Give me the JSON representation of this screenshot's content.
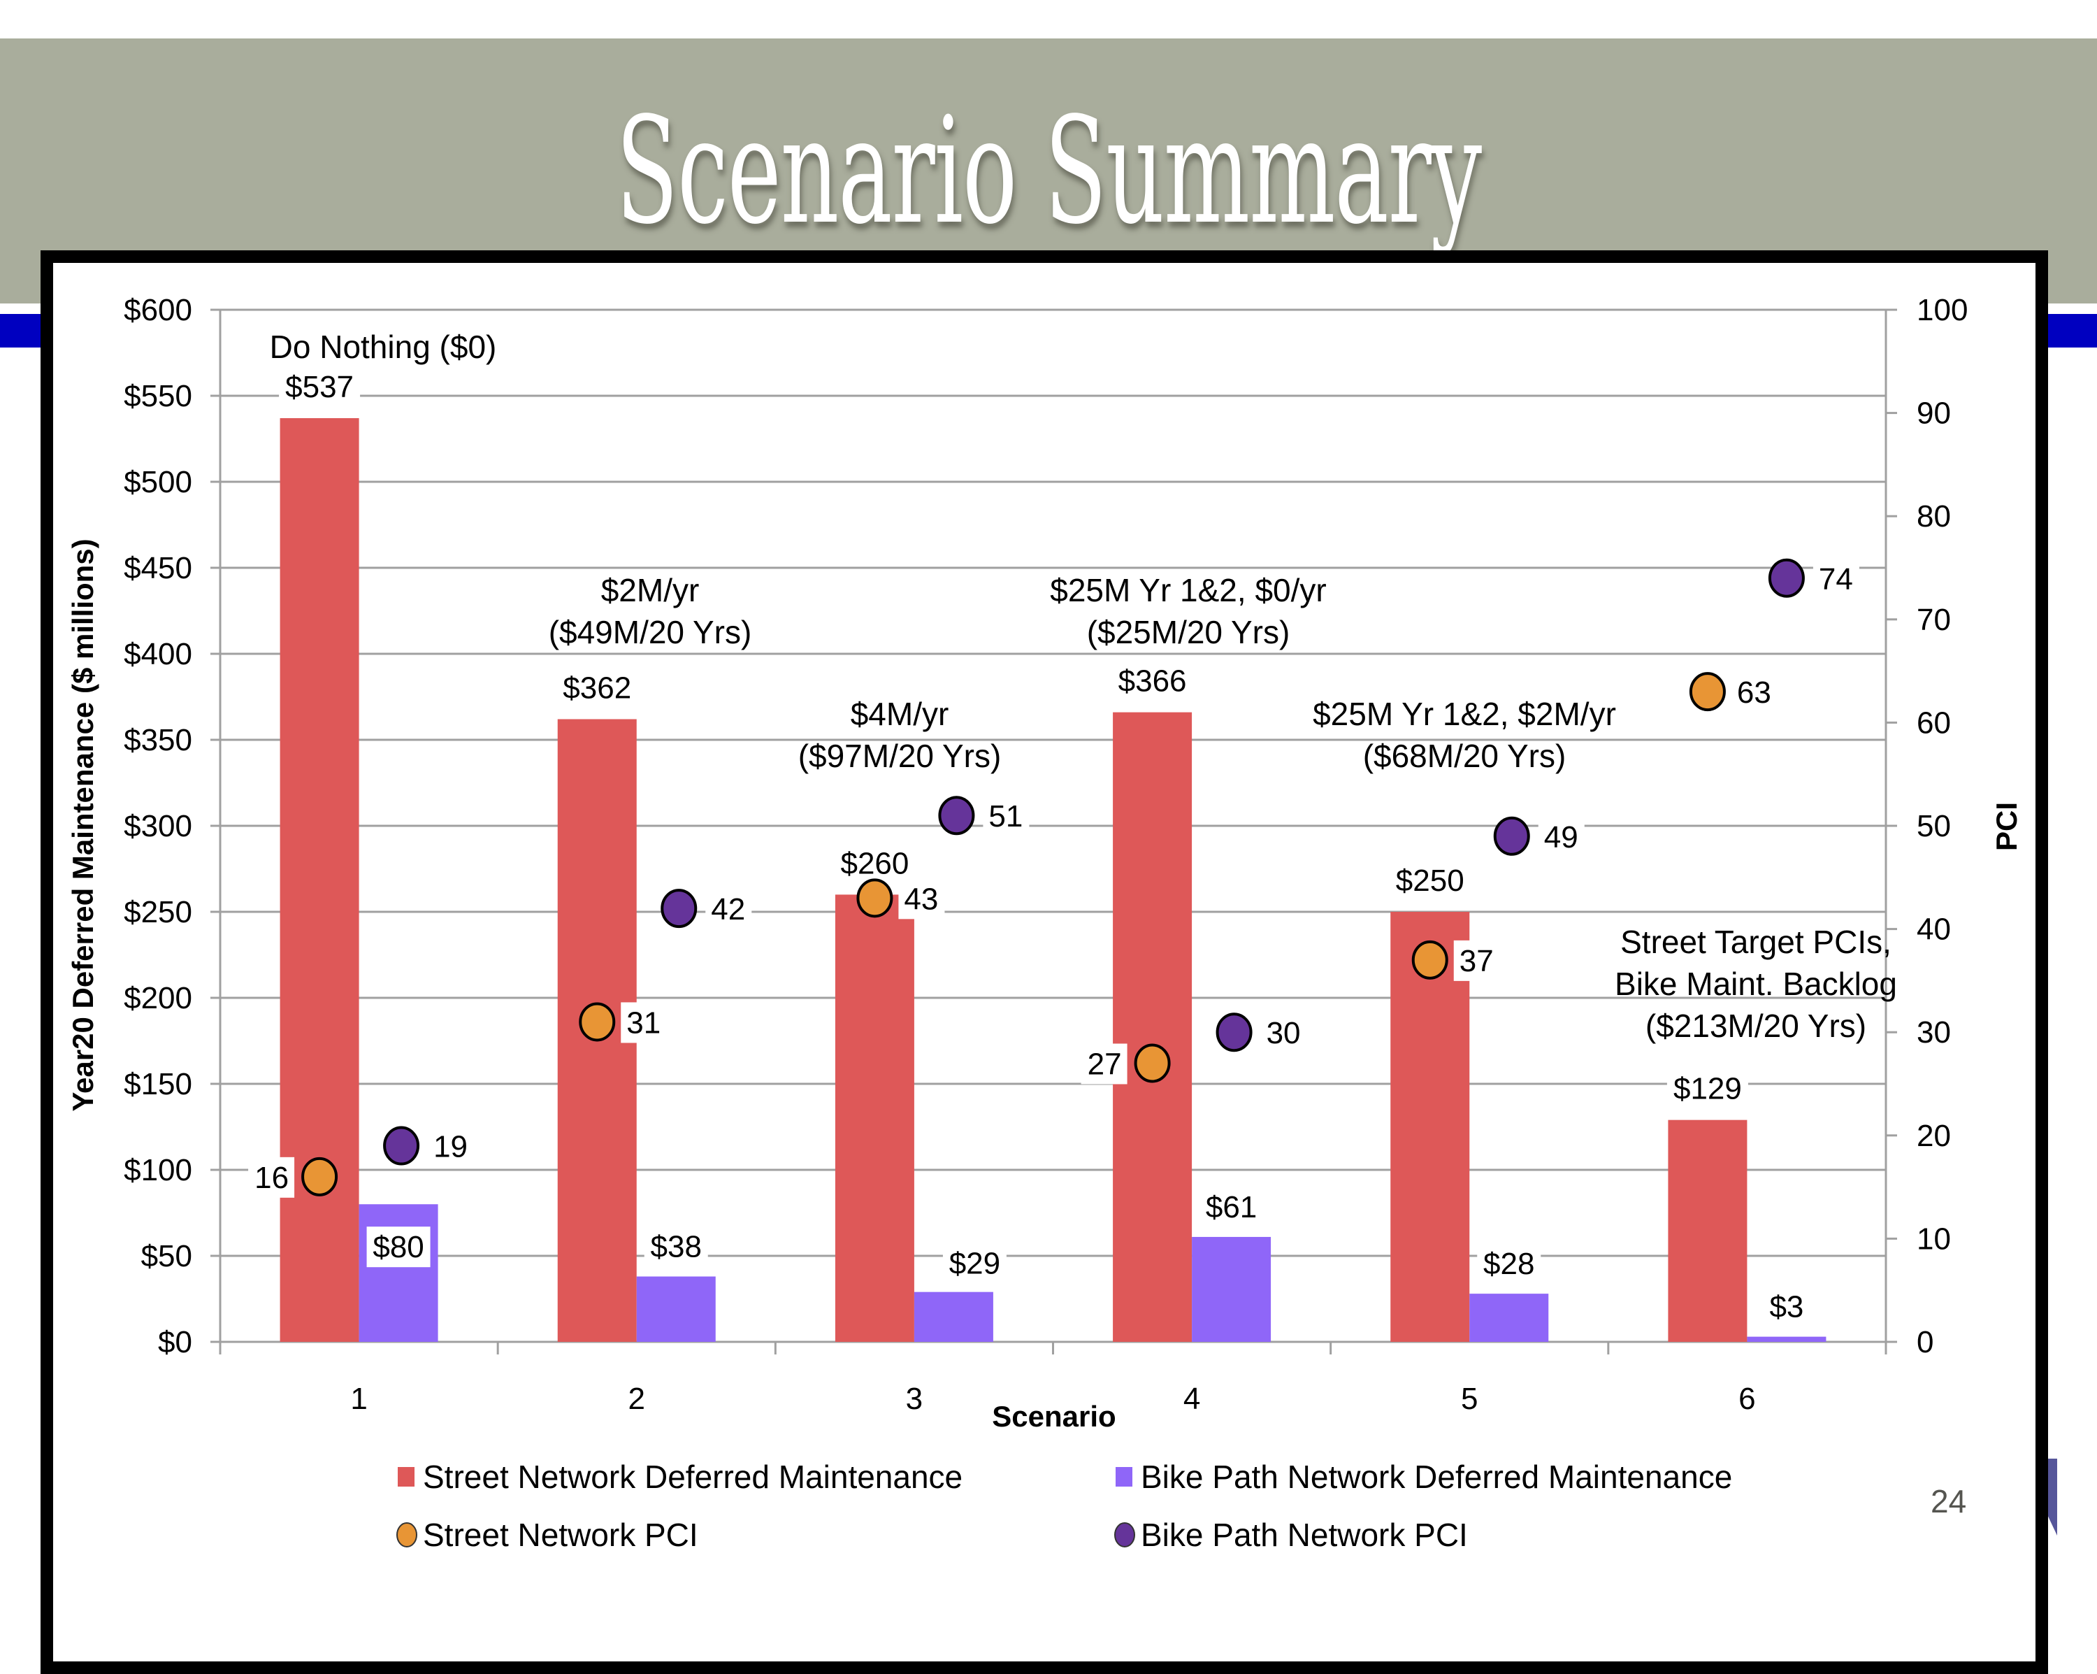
{
  "slide": {
    "title": "Scenario Summary",
    "page_number": "24"
  },
  "colors": {
    "header_band": "#A9AD9C",
    "accent_blue": "#0000C0",
    "street_bar": "#DE5858",
    "bike_bar": "#8F66F8",
    "street_pci": "#E89535",
    "bike_pci": "#65349A"
  },
  "chart_data": {
    "type": "bar",
    "title": "",
    "xlabel": "Scenario",
    "ylabel": "Year20 Deferred Maintenance ($ millions)",
    "y2label": "PCI",
    "categories": [
      "1",
      "2",
      "3",
      "4",
      "5",
      "6"
    ],
    "ylim": [
      0,
      600
    ],
    "y2lim": [
      0,
      100
    ],
    "yticks": [
      "$0",
      "$50",
      "$100",
      "$150",
      "$200",
      "$250",
      "$300",
      "$350",
      "$400",
      "$450",
      "$500",
      "$550",
      "$600"
    ],
    "y2ticks": [
      "0",
      "10",
      "20",
      "30",
      "40",
      "50",
      "60",
      "70",
      "80",
      "90",
      "100"
    ],
    "grid": true,
    "legend_position": "bottom",
    "series": [
      {
        "name": "Street Network Deferred Maintenance",
        "kind": "bar",
        "axis": "left",
        "values": [
          537,
          362,
          260,
          366,
          250,
          129
        ],
        "labels": [
          "$537",
          "$362",
          "$260",
          "$366",
          "$250",
          "$129"
        ]
      },
      {
        "name": "Bike Path Network Deferred Maintenance",
        "kind": "bar",
        "axis": "left",
        "values": [
          80,
          38,
          29,
          61,
          28,
          3
        ],
        "labels": [
          "$80",
          "$38",
          "$29",
          "$61",
          "$28",
          "$3"
        ]
      },
      {
        "name": "Street Network PCI",
        "kind": "scatter",
        "axis": "right",
        "values": [
          16,
          31,
          43,
          27,
          37,
          63
        ],
        "labels": [
          "16",
          "31",
          "43",
          "27",
          "37",
          "63"
        ]
      },
      {
        "name": "Bike Path Network PCI",
        "kind": "scatter",
        "axis": "right",
        "values": [
          19,
          42,
          51,
          30,
          49,
          74
        ],
        "labels": [
          "19",
          "42",
          "51",
          "30",
          "49",
          "74"
        ]
      }
    ],
    "annotations": [
      {
        "category": "1",
        "lines": [
          "Do Nothing ($0)"
        ]
      },
      {
        "category": "2",
        "lines": [
          "$2M/yr",
          "($49M/20 Yrs)"
        ]
      },
      {
        "category": "3",
        "lines": [
          "$4M/yr",
          "($97M/20 Yrs)"
        ]
      },
      {
        "category": "4",
        "lines": [
          "$25M Yr 1&2, $0/yr",
          "($25M/20 Yrs)"
        ]
      },
      {
        "category": "5",
        "lines": [
          "$25M Yr 1&2, $2M/yr",
          "($68M/20 Yrs)"
        ]
      },
      {
        "category": "6",
        "lines": [
          "Street Target PCIs,",
          "Bike Maint. Backlog",
          "($213M/20 Yrs)"
        ]
      }
    ]
  }
}
